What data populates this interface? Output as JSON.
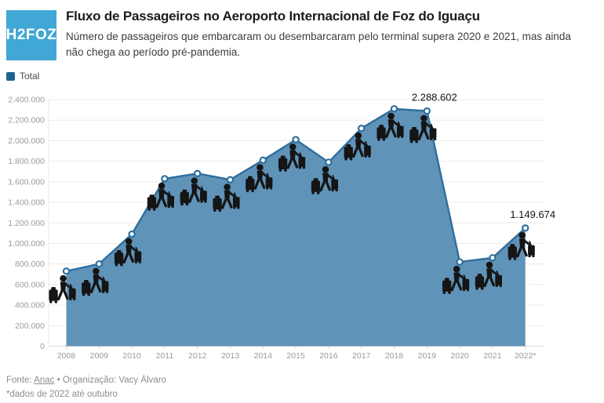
{
  "header": {
    "logo_text": "H2FOZ",
    "title": "Fluxo de Passageiros no Aeroporto Internacional de Foz do Iguaçu",
    "subtitle": "Número de passageiros que embarcaram ou desembarcaram pelo terminal supera 2020 e 2021, mas ainda não chega ao período pré-pandemia."
  },
  "legend": {
    "label": "Total",
    "swatch_color": "#1f628f"
  },
  "brand": {
    "logo_bg": "#41a7d5"
  },
  "chart_data": {
    "type": "area",
    "title": "Fluxo de Passageiros no Aeroporto Internacional de Foz do Iguaçu",
    "series_name": "Total",
    "categories": [
      "2008",
      "2009",
      "2010",
      "2011",
      "2012",
      "2013",
      "2014",
      "2015",
      "2016",
      "2017",
      "2018",
      "2019",
      "2020",
      "2021",
      "2022*"
    ],
    "values": [
      730000,
      800000,
      1090000,
      1630000,
      1680000,
      1620000,
      1810000,
      2010000,
      1790000,
      2120000,
      2310000,
      2288602,
      820000,
      860000,
      1149674
    ],
    "point_labels": {
      "2019": "2.288.602",
      "2022*": "1.149.674"
    },
    "ylim": [
      0,
      2400000
    ],
    "ytick_step": 200000,
    "ytick_labels": [
      "0",
      "200.000",
      "400.000",
      "600.000",
      "800.000",
      "1.000.000",
      "1.200.000",
      "1.400.000",
      "1.600.000",
      "1.800.000",
      "2.000.000",
      "2.200.000",
      "2.400.000"
    ],
    "grid": true,
    "legend_position": "top-left",
    "point_icon": "traveler-with-luggage",
    "colors": {
      "area_fill": "#6093b8",
      "line": "#2e6e9e",
      "marker_fill": "#ffffff",
      "marker_stroke": "#2e6e9e",
      "icon": "#151515",
      "annotation_text": "#131313",
      "axis_text": "#9a9a9a",
      "grid_line": "#ebebeb",
      "axis_line": "#d9d9d9"
    }
  },
  "footer": {
    "source_label": "Fonte:",
    "source_link_text": "Anac",
    "bullet": "•",
    "org_text": "Organização: Vacy Álvaro",
    "note": "*dados de 2022 até outubro"
  }
}
